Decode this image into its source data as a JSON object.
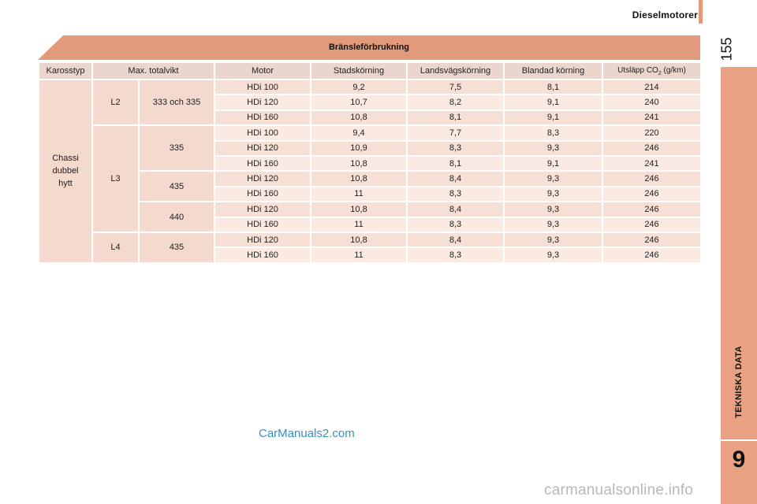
{
  "header": {
    "section_title": "Dieselmotorer",
    "page_number": "155"
  },
  "side_tab": {
    "label": "TEKNISKA DATA",
    "chapter": "9"
  },
  "table": {
    "title": "Bränsleförbrukning",
    "columns": {
      "karosstyp": "Karosstyp",
      "max_totalvikt": "Max. totalvikt",
      "motor": "Motor",
      "stadskorning": "Stadskörning",
      "landsvagskorning": "Landsvägskörning",
      "blandad_korning": "Blandad körning",
      "co2_prefix": "Utsläpp CO",
      "co2_sub": "2",
      "co2_suffix": " (g/km)"
    },
    "body_type": "Chassi\ndubbel\nhytt",
    "groups": [
      {
        "length": "L2",
        "weight": "333 och 335",
        "rows": [
          {
            "motor": "HDi 100",
            "city": "9,2",
            "highway": "7,5",
            "mixed": "8,1",
            "co2": "214"
          },
          {
            "motor": "HDi 120",
            "city": "10,7",
            "highway": "8,2",
            "mixed": "9,1",
            "co2": "240"
          },
          {
            "motor": "HDi 160",
            "city": "10,8",
            "highway": "8,1",
            "mixed": "9,1",
            "co2": "241"
          }
        ]
      },
      {
        "length": "L3",
        "weight": "335",
        "rows": [
          {
            "motor": "HDi 100",
            "city": "9,4",
            "highway": "7,7",
            "mixed": "8,3",
            "co2": "220"
          },
          {
            "motor": "HDi 120",
            "city": "10,9",
            "highway": "8,3",
            "mixed": "9,3",
            "co2": "246"
          },
          {
            "motor": "HDi 160",
            "city": "10,8",
            "highway": "8,1",
            "mixed": "9,1",
            "co2": "241"
          }
        ]
      },
      {
        "weight": "435",
        "rows": [
          {
            "motor": "HDi 120",
            "city": "10,8",
            "highway": "8,4",
            "mixed": "9,3",
            "co2": "246"
          },
          {
            "motor": "HDi 160",
            "city": "11",
            "highway": "8,3",
            "mixed": "9,3",
            "co2": "246"
          }
        ]
      },
      {
        "weight": "440",
        "rows": [
          {
            "motor": "HDi 120",
            "city": "10,8",
            "highway": "8,4",
            "mixed": "9,3",
            "co2": "246"
          },
          {
            "motor": "HDi 160",
            "city": "11",
            "highway": "8,3",
            "mixed": "9,3",
            "co2": "246"
          }
        ]
      },
      {
        "length": "L4",
        "weight": "435",
        "rows": [
          {
            "motor": "HDi 120",
            "city": "10,8",
            "highway": "8,4",
            "mixed": "9,3",
            "co2": "246"
          },
          {
            "motor": "HDi 160",
            "city": "11",
            "highway": "8,3",
            "mixed": "9,3",
            "co2": "246"
          }
        ]
      }
    ]
  },
  "watermark": "CarManuals2.com",
  "footer": {
    "site": "carmanualsonline.info"
  }
}
